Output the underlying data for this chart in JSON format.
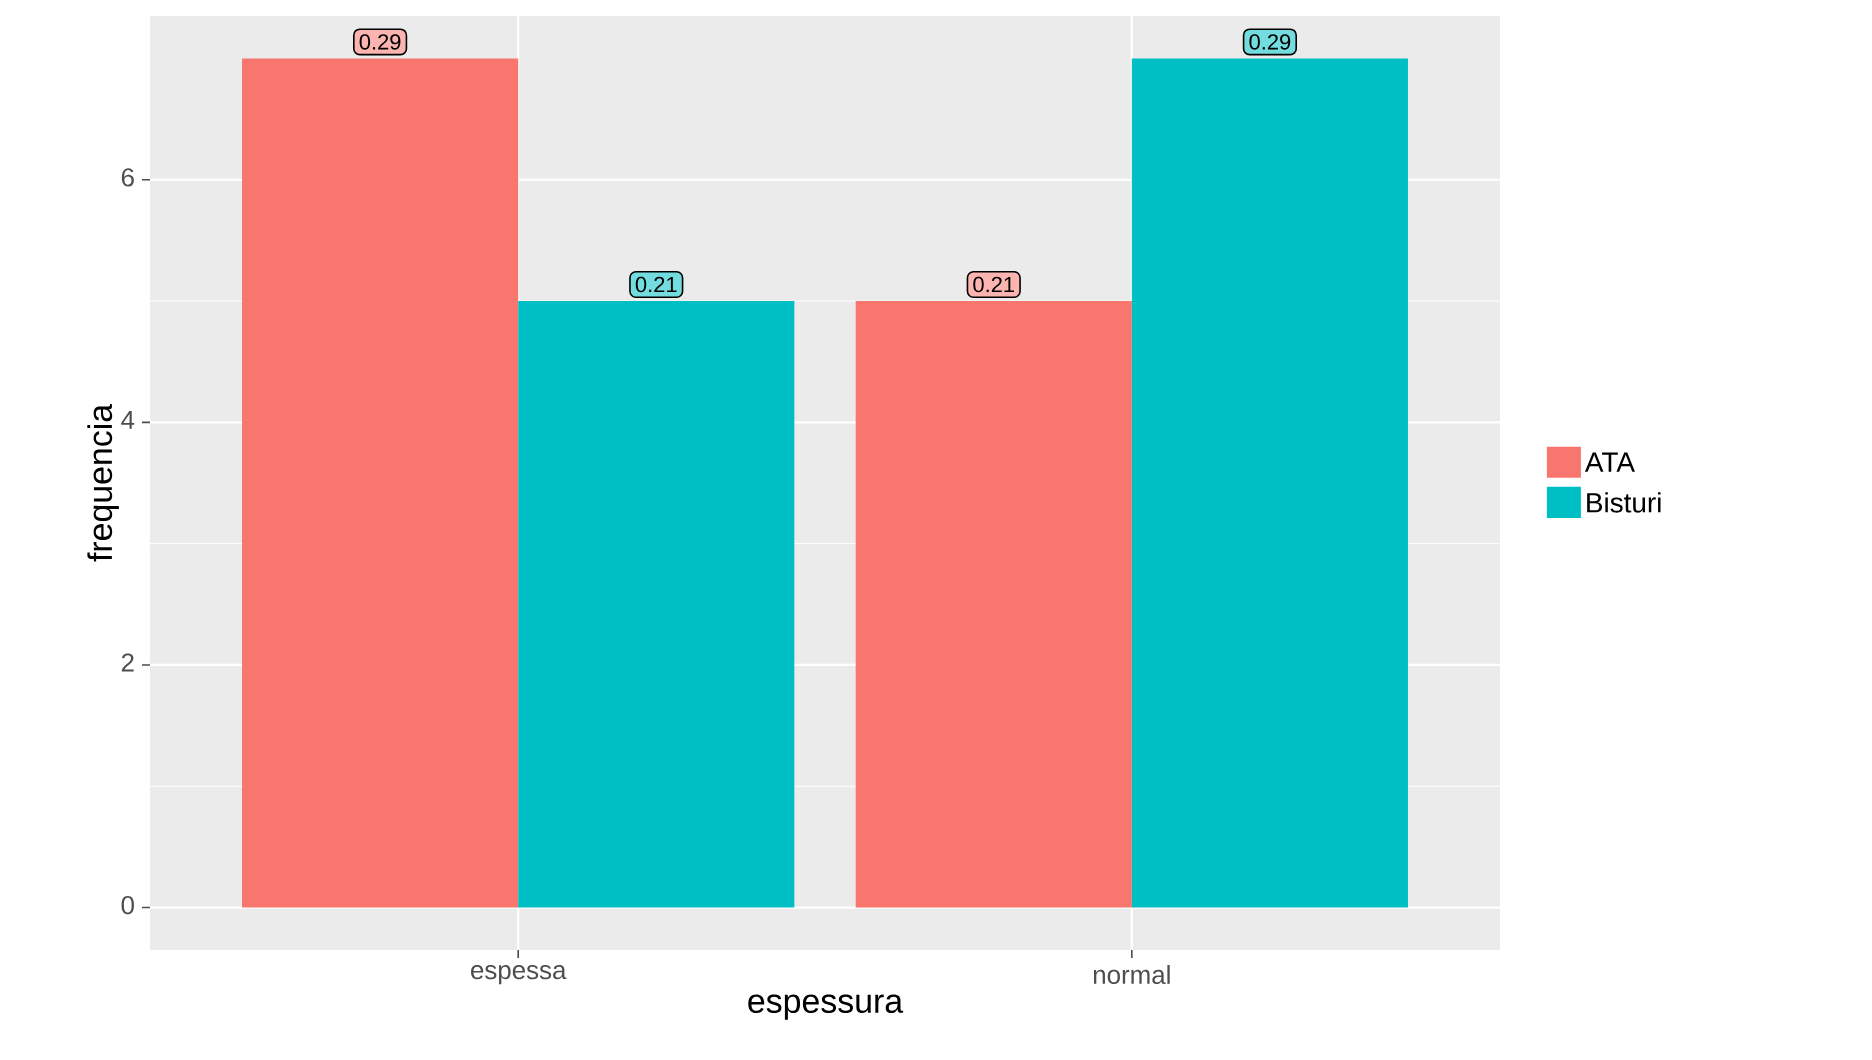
{
  "chart_data": {
    "type": "bar",
    "xlabel": "espessura",
    "ylabel": "frequencia",
    "categories": [
      "espessa",
      "normal"
    ],
    "series": [
      {
        "name": "ATA",
        "color": "#f8766d",
        "values": [
          7,
          5
        ]
      },
      {
        "name": "Bisturi",
        "color": "#00bfc4",
        "values": [
          5,
          7
        ]
      }
    ],
    "annotations": [
      "0.29",
      "0.21",
      "0.21",
      "0.29"
    ],
    "ylim": [
      -0.35,
      7.35
    ],
    "yticks": [
      0,
      2,
      4,
      6
    ],
    "grid": true,
    "legend": "right"
  }
}
